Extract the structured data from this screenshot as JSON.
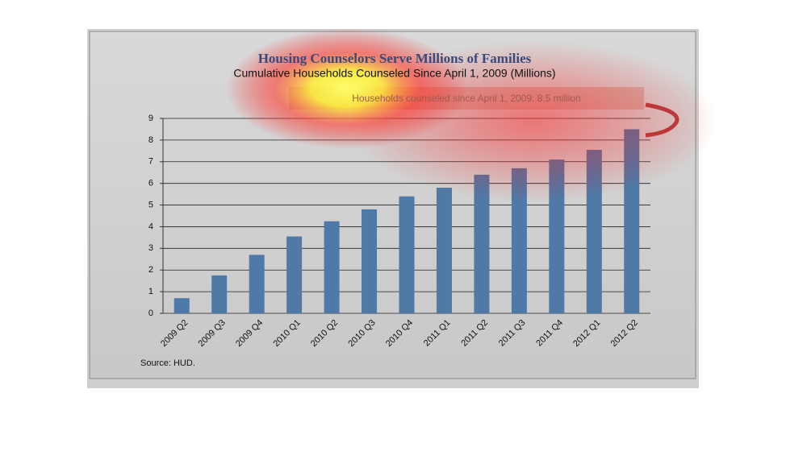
{
  "chart_data": {
    "type": "bar",
    "title": "Housing Counselors Serve Millions of Families",
    "subtitle": "Cumulative Households Counseled Since April 1, 2009 (Millions)",
    "annotation": "Households counseled  since  April 1, 2009: 8.5 million",
    "source": "Source:  HUD.",
    "categories": [
      "2009 Q2",
      "2009 Q3",
      "2009 Q4",
      "2010 Q1",
      "2010 Q2",
      "2010 Q3",
      "2010 Q4",
      "2011 Q1",
      "2011 Q2",
      "2011 Q3",
      "2011 Q4",
      "2012 Q1",
      "2012 Q2"
    ],
    "values": [
      0.7,
      1.75,
      2.7,
      3.55,
      4.25,
      4.8,
      5.4,
      5.8,
      6.4,
      6.7,
      7.1,
      7.55,
      8.5
    ],
    "color": "#4f79a7",
    "ylim": [
      0,
      9
    ],
    "yticks": [
      0,
      1,
      2,
      3,
      4,
      5,
      6,
      7,
      8,
      9
    ],
    "grid": true
  }
}
